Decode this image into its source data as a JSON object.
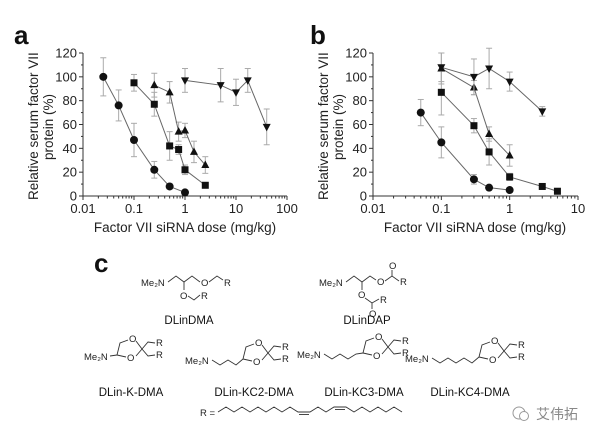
{
  "panels": {
    "a": "a",
    "b": "b",
    "c": "c"
  },
  "chart_data": [
    {
      "type": "line",
      "panel": "a",
      "xlabel": "Factor VII siRNA dose (mg/kg)",
      "ylabel": [
        "Relative serum factor VII",
        "protein (%)"
      ],
      "xscale": "log",
      "xlim": [
        0.01,
        100
      ],
      "ylim": [
        0,
        120
      ],
      "xticks": [
        "0.01",
        "0.1",
        "1",
        "10",
        "100"
      ],
      "yticks": [
        "0",
        "20",
        "40",
        "60",
        "80",
        "100",
        "120"
      ],
      "grid": false,
      "series": [
        {
          "marker": "circle",
          "x": [
            0.025,
            0.05,
            0.1,
            0.25,
            0.5,
            1
          ],
          "y": [
            100,
            76,
            47,
            22,
            8,
            3
          ],
          "err": [
            16,
            13,
            14,
            7,
            2,
            2
          ]
        },
        {
          "marker": "square",
          "x": [
            0.1,
            0.25,
            0.5,
            0.75,
            1,
            2.5
          ],
          "y": [
            95,
            77,
            42,
            39,
            22,
            9
          ],
          "err": [
            7,
            10,
            12,
            4,
            4,
            2
          ]
        },
        {
          "marker": "triangle-up",
          "x": [
            0.25,
            0.5,
            0.75,
            1,
            1.5,
            2.5
          ],
          "y": [
            93,
            87,
            54,
            55,
            37,
            26
          ],
          "err": [
            10,
            9,
            8,
            6,
            9,
            7
          ]
        },
        {
          "marker": "triangle-down",
          "x": [
            1,
            5,
            10,
            17,
            40
          ],
          "y": [
            97,
            93,
            87,
            97,
            58
          ],
          "err": [
            10,
            14,
            11,
            10,
            15
          ]
        }
      ]
    },
    {
      "type": "line",
      "panel": "b",
      "xlabel": "Factor VII siRNA dose (mg/kg)",
      "ylabel": [
        "Relative serum factor VII",
        "protein (%)"
      ],
      "xscale": "log",
      "xlim": [
        0.01,
        10
      ],
      "ylim": [
        0,
        120
      ],
      "xticks": [
        "0.01",
        "0.1",
        "1",
        "10"
      ],
      "yticks": [
        "0",
        "20",
        "40",
        "60",
        "80",
        "100",
        "120"
      ],
      "grid": false,
      "series": [
        {
          "marker": "circle",
          "x": [
            0.05,
            0.1,
            0.3,
            0.5,
            1
          ],
          "y": [
            70,
            45,
            14,
            7,
            5
          ],
          "err": [
            11,
            13,
            4,
            2,
            2
          ]
        },
        {
          "marker": "square",
          "x": [
            0.1,
            0.3,
            0.5,
            1,
            3,
            5
          ],
          "y": [
            87,
            59,
            37,
            16,
            8,
            4
          ],
          "err": [
            19,
            6,
            11,
            3,
            2,
            2
          ]
        },
        {
          "marker": "triangle-up",
          "x": [
            0.1,
            0.3,
            0.5,
            1
          ],
          "y": [
            107,
            91,
            52,
            34
          ],
          "err": [
            13,
            6,
            6,
            9
          ]
        },
        {
          "marker": "triangle-down",
          "x": [
            0.1,
            0.3,
            0.5,
            1,
            3
          ],
          "y": [
            108,
            100,
            107,
            96,
            71
          ],
          "err": [
            12,
            15,
            17,
            8,
            4
          ]
        }
      ]
    }
  ],
  "structures": {
    "me2n": "Me₂N",
    "o": "O",
    "r": "R",
    "r_def": "R =",
    "names": [
      "DLinDMA",
      "DLinDAP",
      "DLin-K-DMA",
      "DLin-KC2-DMA",
      "DLin-KC3-DMA",
      "DLin-KC4-DMA"
    ]
  },
  "watermark": "艾伟拓",
  "colors": {
    "line": "#666666",
    "marker": "#111111",
    "errorbar": "#aaaaaa"
  }
}
